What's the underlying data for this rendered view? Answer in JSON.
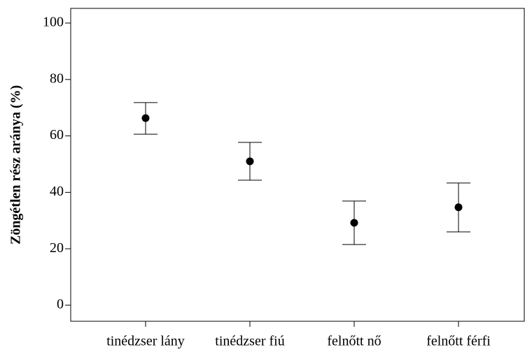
{
  "chart_data": {
    "type": "errorbar",
    "ylabel": "Zöngétlen rész aránya (%)",
    "categories": [
      "tinédzser lány",
      "tinédzser fiú",
      "felnőtt nő",
      "felnőtt férfi"
    ],
    "values": [
      66.3,
      51.0,
      29.2,
      34.7
    ],
    "upper": [
      71.8,
      57.7,
      36.9,
      43.3
    ],
    "lower": [
      60.6,
      44.3,
      21.5,
      26.0
    ],
    "color": "#000000",
    "ylim": [
      -5.7,
      105.2
    ],
    "yticks": [
      0,
      20,
      40,
      60,
      80,
      100
    ]
  }
}
